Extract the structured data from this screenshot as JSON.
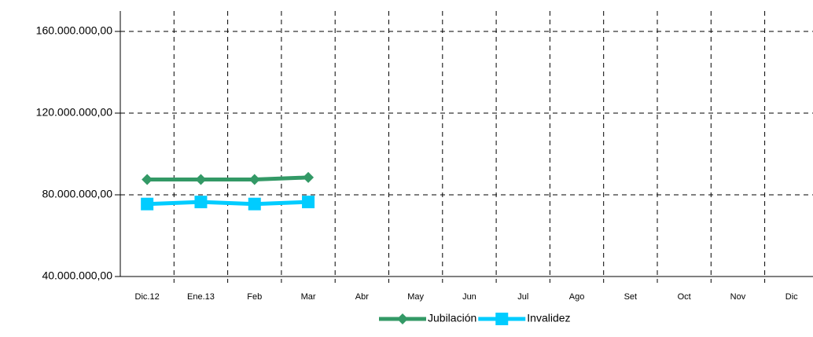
{
  "chart_data": {
    "type": "line",
    "categories": [
      "Dic.12",
      "Ene.13",
      "Feb",
      "Mar",
      "Abr",
      "May",
      "Jun",
      "Jul",
      "Ago",
      "Set",
      "Oct",
      "Nov",
      "Dic"
    ],
    "series": [
      {
        "name": "Jubilación",
        "color": "#339966",
        "marker": "diamond",
        "values": [
          87500000,
          87500000,
          87500000,
          88500000,
          null,
          null,
          null,
          null,
          null,
          null,
          null,
          null,
          null
        ]
      },
      {
        "name": "Invalidez",
        "color": "#00ccff",
        "marker": "square",
        "values": [
          75500000,
          76500000,
          75500000,
          76500000,
          null,
          null,
          null,
          null,
          null,
          null,
          null,
          null,
          null
        ]
      }
    ],
    "ylim": [
      40000000,
      170000000
    ],
    "yticks": [
      {
        "value": 40000000,
        "label": "40.000.000,00"
      },
      {
        "value": 80000000,
        "label": "80.000.000,00"
      },
      {
        "value": 120000000,
        "label": "120.000.000,00"
      },
      {
        "value": 160000000,
        "label": "160.000.000,00"
      }
    ],
    "grid": true,
    "legend": "bottom"
  }
}
